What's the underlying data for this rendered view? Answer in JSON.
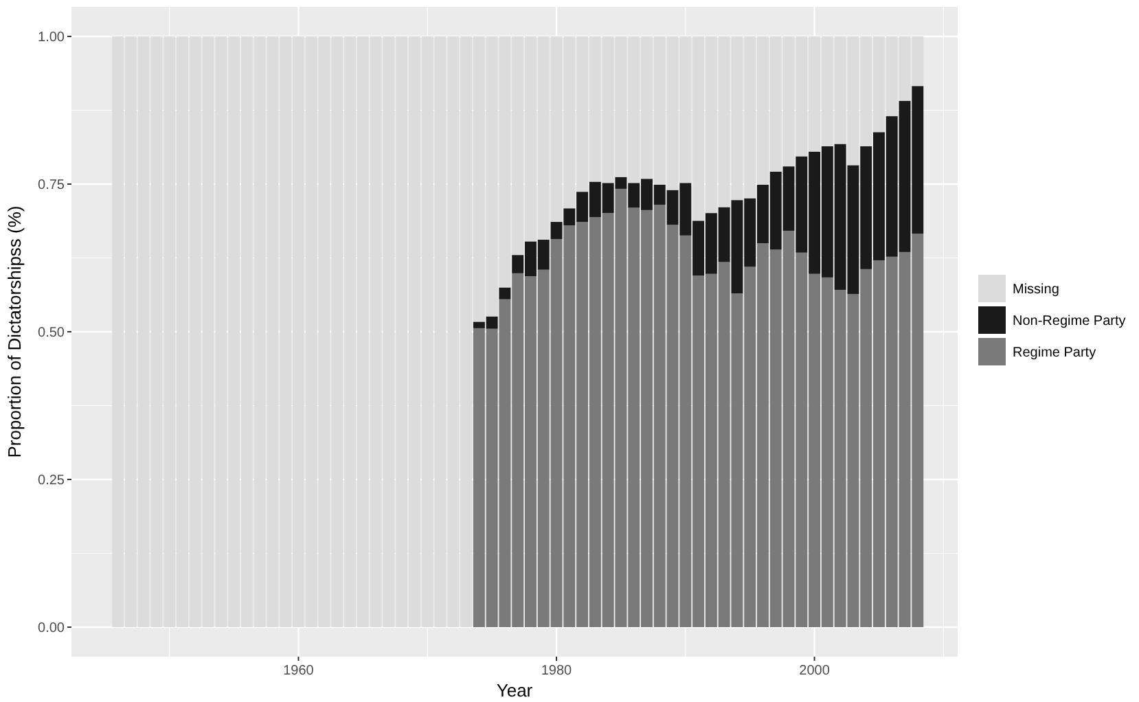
{
  "chart_data": {
    "type": "bar",
    "stacked": true,
    "xlabel": "Year",
    "ylabel": "Proportion of Dictatorshipss (%)",
    "x": [
      1946,
      1947,
      1948,
      1949,
      1950,
      1951,
      1952,
      1953,
      1954,
      1955,
      1956,
      1957,
      1958,
      1959,
      1960,
      1961,
      1962,
      1963,
      1964,
      1965,
      1966,
      1967,
      1968,
      1969,
      1970,
      1971,
      1972,
      1973,
      1974,
      1975,
      1976,
      1977,
      1978,
      1979,
      1980,
      1981,
      1982,
      1983,
      1984,
      1985,
      1986,
      1987,
      1988,
      1989,
      1990,
      1991,
      1992,
      1993,
      1994,
      1995,
      1996,
      1997,
      1998,
      1999,
      2000,
      2001,
      2002,
      2003,
      2004,
      2005,
      2006,
      2007,
      2008
    ],
    "xlim": [
      1942.4,
      2011.1
    ],
    "xticks": [
      1960,
      1980,
      2000
    ],
    "ylim": [
      -0.05,
      1.05
    ],
    "yticks": [
      {
        "value": 0,
        "label": "0.00"
      },
      {
        "value": 0.25,
        "label": "0.25"
      },
      {
        "value": 0.5,
        "label": "0.50"
      },
      {
        "value": 0.75,
        "label": "0.75"
      },
      {
        "value": 1,
        "label": "1.00"
      }
    ],
    "grid": true,
    "legend": "right",
    "series": [
      {
        "name": "Regime Party",
        "color": "#7a7a7a",
        "values": [
          null,
          null,
          null,
          null,
          null,
          null,
          null,
          null,
          null,
          null,
          null,
          null,
          null,
          null,
          null,
          null,
          null,
          null,
          null,
          null,
          null,
          null,
          null,
          null,
          null,
          null,
          null,
          null,
          0.506,
          0.505,
          0.555,
          0.599,
          0.594,
          0.605,
          0.657,
          0.68,
          0.686,
          0.694,
          0.701,
          0.742,
          0.71,
          0.706,
          0.715,
          0.681,
          0.663,
          0.595,
          0.598,
          0.618,
          0.565,
          0.61,
          0.65,
          0.639,
          0.671,
          0.634,
          0.598,
          0.592,
          0.571,
          0.564,
          0.606,
          0.621,
          0.627,
          0.635,
          0.666
        ]
      },
      {
        "name": "Non-Regime Party",
        "color": "#1a1a1a",
        "values": [
          null,
          null,
          null,
          null,
          null,
          null,
          null,
          null,
          null,
          null,
          null,
          null,
          null,
          null,
          null,
          null,
          null,
          null,
          null,
          null,
          null,
          null,
          null,
          null,
          null,
          null,
          null,
          null,
          0.011,
          0.021,
          0.02,
          0.031,
          0.059,
          0.051,
          0.029,
          0.029,
          0.051,
          0.06,
          0.051,
          0.02,
          0.042,
          0.053,
          0.034,
          0.059,
          0.089,
          0.093,
          0.103,
          0.093,
          0.158,
          0.116,
          0.099,
          0.132,
          0.109,
          0.163,
          0.207,
          0.222,
          0.247,
          0.218,
          0.208,
          0.217,
          0.238,
          0.256,
          0.25
        ]
      },
      {
        "name": "Missing",
        "color": "#dcdcdc",
        "values": [
          1,
          1,
          1,
          1,
          1,
          1,
          1,
          1,
          1,
          1,
          1,
          1,
          1,
          1,
          1,
          1,
          1,
          1,
          1,
          1,
          1,
          1,
          1,
          1,
          1,
          1,
          1,
          1,
          0.483,
          0.474,
          0.425,
          0.37,
          0.347,
          0.344,
          0.314,
          0.291,
          0.263,
          0.246,
          0.248,
          0.238,
          0.248,
          0.241,
          0.251,
          0.26,
          0.248,
          0.312,
          0.299,
          0.289,
          0.277,
          0.274,
          0.251,
          0.229,
          0.22,
          0.203,
          0.195,
          0.186,
          0.182,
          0.218,
          0.186,
          0.162,
          0.135,
          0.109,
          0.084
        ]
      }
    ]
  }
}
